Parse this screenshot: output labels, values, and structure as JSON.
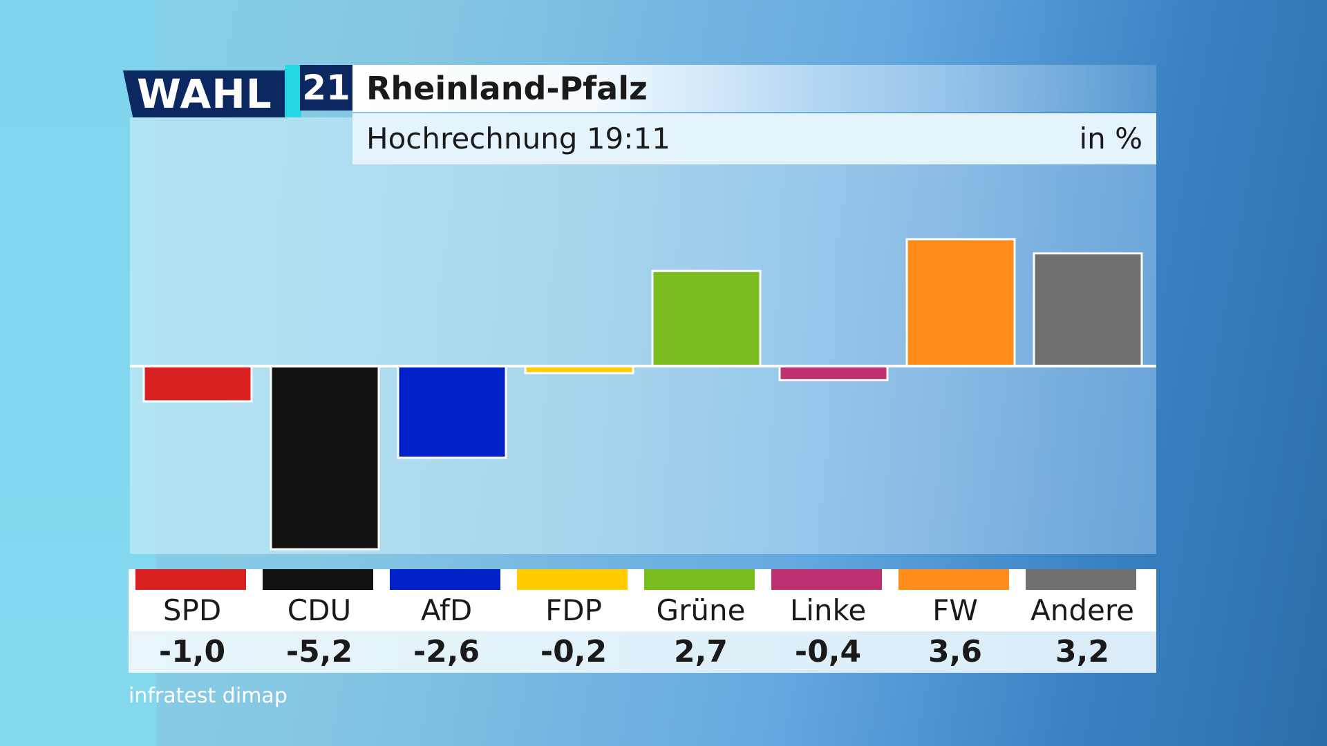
{
  "logo": {
    "wahl": "WAHL",
    "year": "21"
  },
  "header": {
    "title": "Rheinland-Pfalz",
    "subtitle": "Hochrechnung 19:11",
    "unit": "in %"
  },
  "source": "infratest dimap",
  "colors": {
    "zero_line": "#ffffff",
    "bar_border": "#ffffff"
  },
  "chart_data": {
    "type": "bar",
    "title": "Rheinland-Pfalz",
    "subtitle": "Hochrechnung 19:11",
    "ylabel": "in %",
    "ylim": [
      -5.2,
      3.6
    ],
    "grid": false,
    "categories": [
      "SPD",
      "CDU",
      "AfD",
      "FDP",
      "Grüne",
      "Linke",
      "FW",
      "Andere"
    ],
    "values": [
      -1.0,
      -5.2,
      -2.6,
      -0.2,
      2.7,
      -0.4,
      3.6,
      3.2
    ],
    "value_labels": [
      "-1,0",
      "-5,2",
      "-2,6",
      "-0,2",
      "2,7",
      "-0,4",
      "3,6",
      "3,2"
    ],
    "colors": [
      "#d92121",
      "#121212",
      "#0020c8",
      "#ffcc00",
      "#7abd1e",
      "#bf3070",
      "#ff8c1a",
      "#707070"
    ]
  }
}
